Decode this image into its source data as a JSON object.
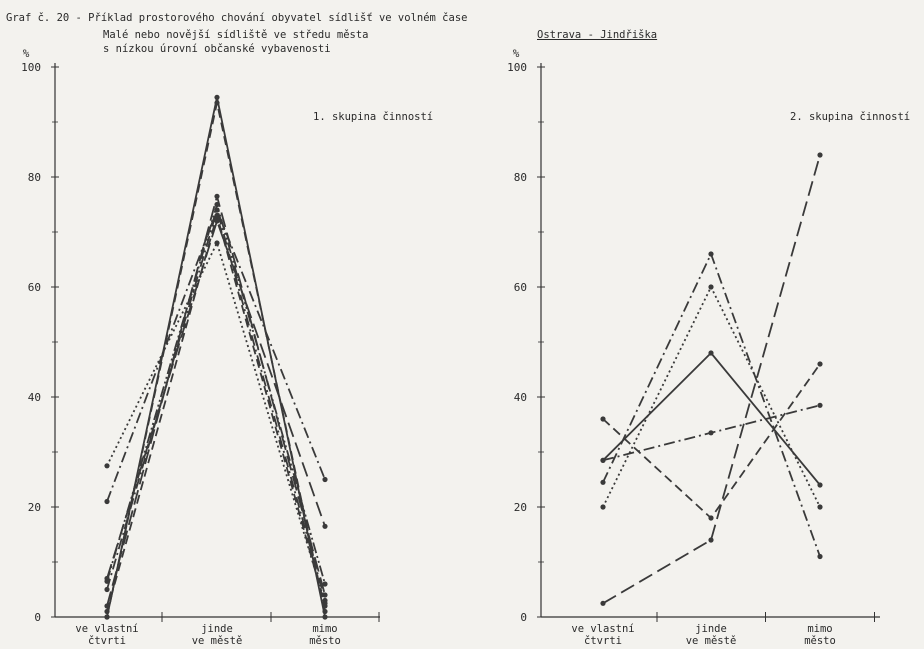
{
  "header": {
    "title": "Graf č. 20 - Příklad prostorového chování obyvatel sídlišť ve volném čase",
    "subtitle_line1": "Malé nebo novější sídliště ve středu města",
    "subtitle_line2": "s nízkou úrovní občanské vybavenosti",
    "location": "Ostrava - Jindřiška"
  },
  "chart_data": [
    {
      "type": "line",
      "title": "1. skupina činností",
      "ylabel": "%",
      "ylim": [
        0,
        100
      ],
      "yticks": [
        0,
        20,
        40,
        60,
        80,
        100
      ],
      "categories": [
        [
          "ve vlastní",
          "čtvrti"
        ],
        [
          "jinde",
          "ve městě"
        ],
        [
          "mimo",
          "město"
        ]
      ],
      "series": [
        {
          "values": [
            0,
            94.5,
            0
          ],
          "dash": "solid"
        },
        {
          "values": [
            0,
            93.5,
            1
          ],
          "dash": "dashed"
        },
        {
          "values": [
            2,
            76.5,
            4
          ],
          "dash": "longdash"
        },
        {
          "values": [
            5,
            74,
            3
          ],
          "dash": "dashdot"
        },
        {
          "values": [
            6.5,
            75,
            6
          ],
          "dash": "dashdotdot"
        },
        {
          "values": [
            1,
            73,
            2
          ],
          "dash": "dashed"
        },
        {
          "values": [
            27.5,
            68,
            2.5
          ],
          "dash": "dotted"
        },
        {
          "values": [
            21,
            74,
            25
          ],
          "dash": "dashdot"
        },
        {
          "values": [
            7,
            72,
            16.5
          ],
          "dash": "longdash"
        }
      ]
    },
    {
      "type": "line",
      "title": "2. skupina činností",
      "ylabel": "%",
      "ylim": [
        0,
        100
      ],
      "yticks": [
        0,
        20,
        40,
        60,
        80,
        100
      ],
      "categories": [
        [
          "ve vlastní",
          "čtvrti"
        ],
        [
          "jinde",
          "ve městě"
        ],
        [
          "mimo",
          "město"
        ]
      ],
      "series": [
        {
          "values": [
            28.5,
            48,
            24
          ],
          "dash": "solid"
        },
        {
          "values": [
            2.5,
            14,
            84
          ],
          "dash": "longdash"
        },
        {
          "values": [
            24.5,
            66,
            11
          ],
          "dash": "dashdot"
        },
        {
          "values": [
            20,
            60,
            20
          ],
          "dash": "dotted"
        },
        {
          "values": [
            36,
            18,
            46
          ],
          "dash": "dashed"
        },
        {
          "values": [
            28.5,
            33.5,
            38.5
          ],
          "dash": "dashdot"
        }
      ]
    }
  ]
}
